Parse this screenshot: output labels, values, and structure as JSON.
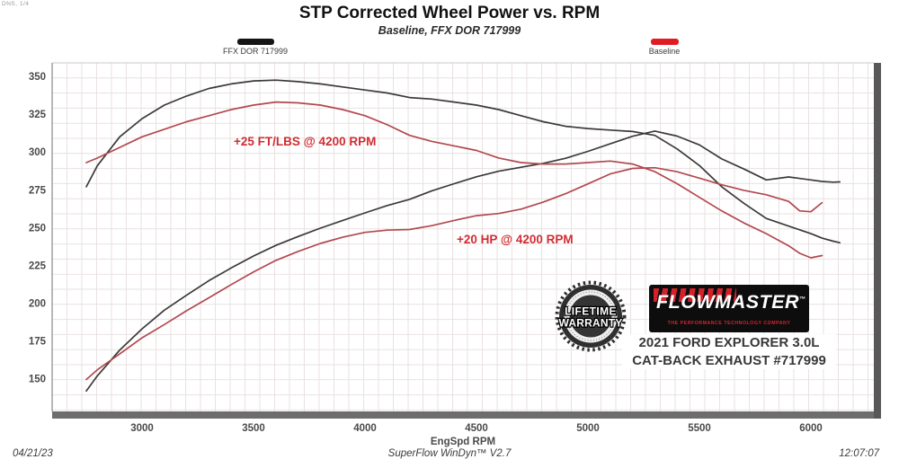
{
  "page": {
    "corner_note": "DNS, 1/4"
  },
  "header": {
    "title": "STP Corrected Wheel Power vs. RPM",
    "subtitle": "Baseline, FFX DOR 717999"
  },
  "legend": {
    "items": [
      {
        "label": "FFX DOR 717999",
        "color": "#151515"
      },
      {
        "label": "Baseline",
        "color": "#e01b22"
      }
    ]
  },
  "annotations": {
    "torque_gain": "+25 FT/LBS @ 4200 RPM",
    "power_gain": "+20 HP @ 4200 RPM"
  },
  "chart_data": {
    "type": "line",
    "title": "STP Corrected Wheel Power vs. RPM",
    "subtitle": "Baseline, FFX DOR 717999",
    "xlabel": "EngSpd  RPM",
    "ylabel": "",
    "xlim": [
      2600,
      6280
    ],
    "ylim": [
      128,
      358
    ],
    "x_ticks": [
      3000,
      3500,
      4000,
      4500,
      5000,
      5500,
      6000
    ],
    "y_ticks": [
      150,
      175,
      200,
      225,
      250,
      275,
      300,
      325,
      350
    ],
    "grid": true,
    "legend_position": "top",
    "series": [
      {
        "name": "FFX DOR 717999 Torque (ft-lb)",
        "color": "#3a3a3a",
        "x": [
          2750,
          2800,
          2900,
          3000,
          3100,
          3200,
          3300,
          3400,
          3500,
          3600,
          3700,
          3800,
          3900,
          4000,
          4100,
          4200,
          4300,
          4400,
          4500,
          4600,
          4700,
          4800,
          4900,
          5000,
          5100,
          5200,
          5300,
          5400,
          5500,
          5600,
          5700,
          5800,
          5900,
          6000,
          6050,
          6100,
          6130
        ],
        "values": [
          277,
          291,
          310,
          322,
          331,
          337,
          342,
          345,
          347,
          347.5,
          346.5,
          345,
          343,
          341,
          339,
          336,
          335,
          333,
          331,
          328,
          324,
          320,
          317,
          315.5,
          314.5,
          313.5,
          311,
          302,
          291,
          277,
          266,
          256,
          251,
          246,
          243,
          241,
          240
        ]
      },
      {
        "name": "FFX DOR 717999 Power (HP)",
        "color": "#3a3a3a",
        "x": [
          2750,
          2800,
          2900,
          3000,
          3100,
          3200,
          3300,
          3400,
          3500,
          3600,
          3700,
          3800,
          3900,
          4000,
          4100,
          4200,
          4300,
          4400,
          4500,
          4600,
          4700,
          4800,
          4900,
          5000,
          5100,
          5200,
          5300,
          5400,
          5500,
          5600,
          5700,
          5800,
          5900,
          6000,
          6050,
          6100,
          6130
        ],
        "values": [
          142,
          152,
          169,
          183,
          195.4,
          205.3,
          214.9,
          223.3,
          231.2,
          238.2,
          244.1,
          249.6,
          254.7,
          259.7,
          264.6,
          268.7,
          274.3,
          279,
          283.6,
          287.3,
          289.9,
          292.5,
          295.8,
          300.4,
          305.4,
          310.4,
          313.8,
          310.5,
          304.7,
          295.4,
          288.7,
          281.5,
          283.5,
          281.5,
          280.5,
          280,
          280.2
        ]
      },
      {
        "name": "Baseline Torque (ft-lb)",
        "color": "#b2484e",
        "x": [
          2750,
          2800,
          2900,
          3000,
          3100,
          3200,
          3300,
          3400,
          3500,
          3600,
          3700,
          3800,
          3900,
          4000,
          4100,
          4200,
          4300,
          4400,
          4500,
          4600,
          4700,
          4800,
          4900,
          5000,
          5100,
          5200,
          5300,
          5400,
          5500,
          5600,
          5700,
          5800,
          5900,
          5950,
          6000,
          6050
        ],
        "values": [
          293,
          296,
          303,
          310,
          315,
          320,
          324,
          328,
          331,
          333,
          332.5,
          331,
          328,
          324,
          318,
          311,
          307,
          304,
          301,
          296,
          293,
          292,
          292,
          293,
          294,
          292,
          287,
          279,
          270,
          261,
          253,
          246,
          238,
          233,
          230,
          231.5
        ]
      },
      {
        "name": "Baseline Power (HP)",
        "color": "#b2484e",
        "x": [
          2750,
          2800,
          2900,
          3000,
          3100,
          3200,
          3300,
          3400,
          3500,
          3600,
          3700,
          3800,
          3900,
          4000,
          4100,
          4200,
          4300,
          4400,
          4500,
          4600,
          4700,
          4800,
          4900,
          5000,
          5100,
          5200,
          5300,
          5400,
          5500,
          5600,
          5700,
          5800,
          5900,
          5950,
          6000,
          6050
        ],
        "values": [
          149.5,
          156,
          166.5,
          177.1,
          185.9,
          195,
          203.6,
          212.3,
          220.6,
          228.3,
          234.2,
          239.5,
          243.6,
          246.8,
          248.3,
          248.7,
          251.3,
          254.7,
          257.9,
          259.3,
          262.2,
          266.9,
          272.4,
          278.9,
          285.5,
          289.1,
          289.6,
          286.9,
          282.7,
          278.3,
          274.6,
          271.7,
          267.3,
          261,
          260.5,
          266.5
        ]
      }
    ],
    "annotations": [
      {
        "text": "+25 FT/LBS @ 4200 RPM",
        "color": "#d02c32"
      },
      {
        "text": "+20 HP @ 4200 RPM",
        "color": "#d02c32"
      }
    ]
  },
  "branding": {
    "badge_line1": "LIFETIME",
    "badge_line2": "WARRANTY",
    "logo_text": "FLOWMASTER",
    "logo_tm": "™",
    "logo_tagline": "THE PERFORMANCE TECHNOLOGY COMPANY",
    "vehicle_line1": "2021 FORD EXPLORER 3.0L",
    "vehicle_line2": "CAT-BACK EXHAUST #717999"
  },
  "footer": {
    "date": "04/21/23",
    "software": "SuperFlow WinDyn™ V2.7",
    "time": "12:07:07"
  }
}
